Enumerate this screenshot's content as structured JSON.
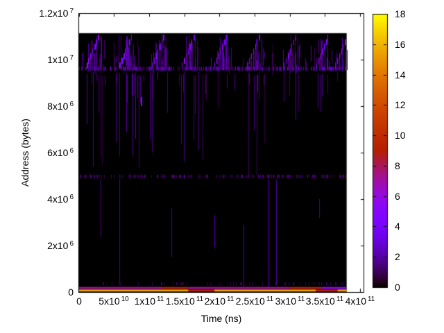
{
  "chart_data": {
    "type": "heatmap",
    "title": "",
    "xlabel": "Time (ns)",
    "ylabel": "Address (bytes)",
    "xlim": [
      0,
      406000000000.0
    ],
    "ylim": [
      0,
      12000000.0
    ],
    "grid": false,
    "x_ticks": [
      {
        "v": 0,
        "m": "0"
      },
      {
        "v": 50000000000.0,
        "m": "5x10",
        "e": "10"
      },
      {
        "v": 100000000000.0,
        "m": "1x10",
        "e": "11"
      },
      {
        "v": 150000000000.0,
        "m": "1.5x10",
        "e": "11"
      },
      {
        "v": 200000000000.0,
        "m": "2x10",
        "e": "11"
      },
      {
        "v": 250000000000.0,
        "m": "2.5x10",
        "e": "11"
      },
      {
        "v": 300000000000.0,
        "m": "3x10",
        "e": "11"
      },
      {
        "v": 350000000000.0,
        "m": "3.5x10",
        "e": "11"
      },
      {
        "v": 400000000000.0,
        "m": "4x10",
        "e": "11"
      }
    ],
    "y_ticks": [
      {
        "v": 0,
        "m": "0"
      },
      {
        "v": 2000000.0,
        "m": "2x10",
        "e": "6"
      },
      {
        "v": 4000000.0,
        "m": "4x10",
        "e": "6"
      },
      {
        "v": 6000000.0,
        "m": "6x10",
        "e": "6"
      },
      {
        "v": 8000000.0,
        "m": "8x10",
        "e": "6"
      },
      {
        "v": 10000000.0,
        "m": "1x10",
        "e": "7"
      },
      {
        "v": 12000000.0,
        "m": "1.2x10",
        "e": "7"
      }
    ],
    "colorbar": {
      "min": 0,
      "max": 18,
      "tick_values": [
        0,
        2,
        4,
        6,
        8,
        10,
        12,
        14,
        16,
        18
      ],
      "palette_name": "gnuplot traditional pm3d (rgbformulae 7,5,15: black-purple-red-yellow)",
      "stops": [
        {
          "v": 0,
          "hex": "#000000"
        },
        {
          "v": 2,
          "hex": "#5500a4"
        },
        {
          "v": 4,
          "hex": "#7803fb"
        },
        {
          "v": 6,
          "hex": "#9309dd"
        },
        {
          "v": 8,
          "hex": "#aa1657"
        },
        {
          "v": 10,
          "hex": "#be2c00"
        },
        {
          "v": 12,
          "hex": "#d04c00"
        },
        {
          "v": 14,
          "hex": "#e17800"
        },
        {
          "v": 16,
          "hex": "#f0b300"
        },
        {
          "v": 18,
          "hex": "#ffff00"
        }
      ]
    },
    "heatmap": {
      "data_t_max": 381000000000.0,
      "data_addr_max": 11140000.0,
      "background_value": 0,
      "top_band": {
        "addr_base": 9550000.0,
        "addr_top": 11140000.0,
        "base_row": {
          "a0": 9530000.0,
          "a1": 9700000.0,
          "density": 0.5,
          "v_min": 1.0,
          "v_max": 2.8
        },
        "scatter_line_count": 100,
        "cluster_times": [
          22000000000.0,
          69000000000.0,
          115000000000.0,
          158000000000.0,
          204000000000.0,
          251000000000.0,
          303000000000.0,
          349000000000.0,
          376000000000.0
        ],
        "cluster_line_count": 12,
        "diagonal": {
          "steps": 7,
          "dt": 2700000000.0,
          "da": 200000.0,
          "a_start": 9750000.0,
          "half_len": 130000.0,
          "v_min": 3.2,
          "v_max": 6.2
        }
      },
      "mid_band": {
        "a_top": 9500000.0,
        "a_bottom": 4950000.0,
        "line_count": 60,
        "v_min": 0.7,
        "v_max": 2.1
      },
      "boundary_row": {
        "a0": 4900000.0,
        "a1": 5050000.0,
        "density": 0.35,
        "v_min": 0.7,
        "v_max": 1.8
      },
      "near_bottom_row": {
        "a0": 300000.0,
        "a1": 420000.0,
        "density": 0.12,
        "v_min": 0.8,
        "v_max": 1.5
      },
      "lower_lines": [
        {
          "t": 31000000000.0,
          "a1": 4850000.0,
          "a0": 2400000.0,
          "v": 1.8
        },
        {
          "t": 58000000000.0,
          "a1": 4850000.0,
          "a0": 300000.0,
          "v": 1.6
        },
        {
          "t": 132000000000.0,
          "a1": 3600000.0,
          "a0": 1500000.0,
          "v": 1.7
        },
        {
          "t": 193000000000.0,
          "a1": 3300000.0,
          "a0": 1900000.0,
          "v": 2.2
        },
        {
          "t": 234000000000.0,
          "a1": 2900000.0,
          "a0": 200000.0,
          "v": 1.8
        },
        {
          "t": 270000000000.0,
          "a1": 4850000.0,
          "a0": 150000.0,
          "v": 2.4
        },
        {
          "t": 281000000000.0,
          "a1": 4850000.0,
          "a0": 300000.0,
          "v": 2.0
        },
        {
          "t": 342000000000.0,
          "a1": 4000000.0,
          "a0": 3200000.0,
          "v": 1.7
        }
      ],
      "spots": [
        {
          "t": 88000000000.0,
          "a0": 8000000.0,
          "a1": 8400000.0,
          "v": 4.6,
          "w": 2
        }
      ],
      "bottom_rows": [
        {
          "a0": 135000.0,
          "a1": 220000.0,
          "segments": [
            [
              0,
              118000000000.0,
              7.2
            ],
            [
              118000000000.0,
              156000000000.0,
              8.8
            ],
            [
              156000000000.0,
              300000000000.0,
              7.2
            ],
            [
              300000000000.0,
              345000000000.0,
              8.8
            ],
            [
              345000000000.0,
              381000000000.0,
              5.5
            ]
          ]
        },
        {
          "a0": 25000.0,
          "a1": 110000.0,
          "segments": [
            [
              0,
              156000000000.0,
              15.6
            ],
            [
              156000000000.0,
              193000000000.0,
              9.2
            ],
            [
              193000000000.0,
              337000000000.0,
              15.6
            ],
            [
              337000000000.0,
              368000000000.0,
              9.2
            ],
            [
              368000000000.0,
              381000000000.0,
              15.6
            ]
          ]
        }
      ],
      "texture_seed": 1337
    }
  }
}
